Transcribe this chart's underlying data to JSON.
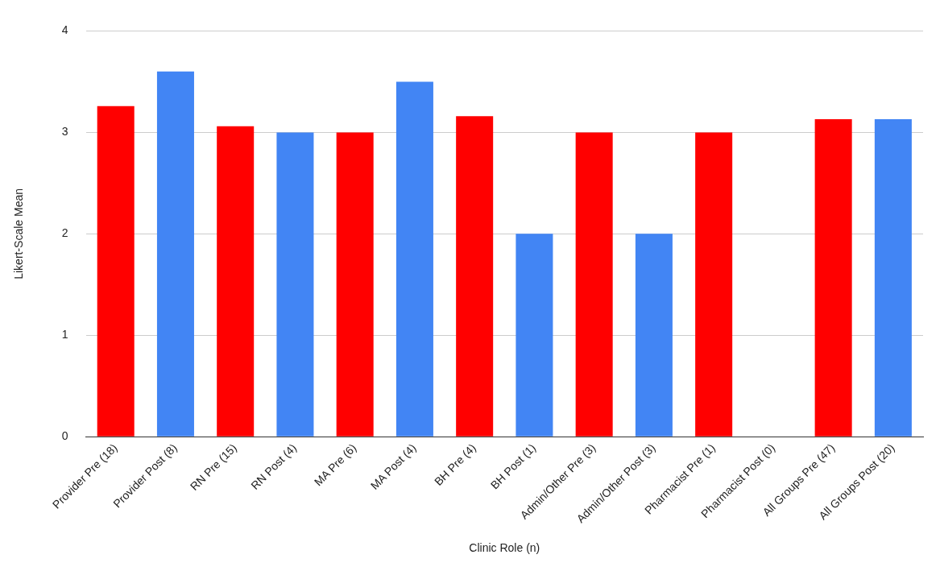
{
  "chart_data": {
    "type": "bar",
    "xlabel": "Clinic Role (n)",
    "ylabel": "Likert-Scale Mean",
    "categories": [
      "Provider Pre (18)",
      "Provider Post (8)",
      "RN Pre (15)",
      "RN Post (4)",
      "MA Pre (6)",
      "MA Post (4)",
      "BH Pre (4)",
      "BH Post (1)",
      "Admin/Other Pre (3)",
      "Admin/Other Post (3)",
      "Pharmacist Pre (1)",
      "Pharmacist Post (0)",
      "All Groups Pre (47)",
      "All Groups Post (20)"
    ],
    "values": [
      3.26,
      3.6,
      3.06,
      3.0,
      3.0,
      3.5,
      3.16,
      2.0,
      3.0,
      2.0,
      3.0,
      null,
      3.13,
      3.13
    ],
    "colors": [
      "#ff0000",
      "#4285f4",
      "#ff0000",
      "#4285f4",
      "#ff0000",
      "#4285f4",
      "#ff0000",
      "#4285f4",
      "#ff0000",
      "#4285f4",
      "#ff0000",
      "#4285f4",
      "#ff0000",
      "#4285f4"
    ],
    "ylim": [
      0,
      4
    ],
    "yticks": [
      0,
      1,
      2,
      3,
      4
    ],
    "grid": "y",
    "legend": false
  }
}
